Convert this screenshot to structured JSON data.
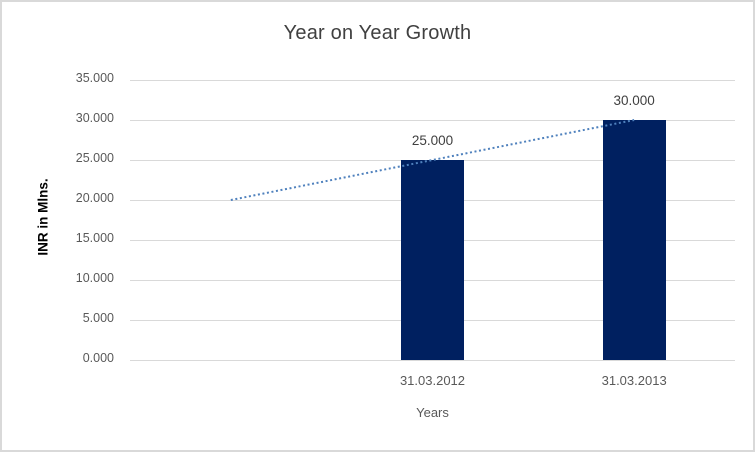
{
  "chart_data": {
    "type": "bar",
    "title": "Year on Year Growth",
    "xlabel": "Years",
    "ylabel": "INR in Mlns.",
    "categories": [
      "31.03.2012",
      "31.03.2013"
    ],
    "values": [
      25,
      30
    ],
    "data_labels": [
      "25.000",
      "30.000"
    ],
    "y_ticks_top_to_bottom": [
      "35.000",
      "30.000",
      "25.000",
      "20.000",
      "15.000",
      "10.000",
      "5.000",
      "0.000"
    ],
    "ylim": [
      0,
      35
    ],
    "y_tick_step": 5,
    "grid": "horizontal",
    "legend": "none",
    "category_slots": 3,
    "bar_slots": [
      1,
      2
    ],
    "trendline": {
      "style": "dotted-linear",
      "slots": [
        0,
        2
      ],
      "values": [
        20,
        30
      ]
    },
    "colors": {
      "bar": "#002060",
      "trendline": "#4f81bd",
      "gridline": "#d9d9d9",
      "title_text": "#404040",
      "axis_text": "#595959",
      "data_label_text": "#404040",
      "ylabel_text": "#000000",
      "background": "#ffffff",
      "border": "#d9d9d9"
    }
  }
}
